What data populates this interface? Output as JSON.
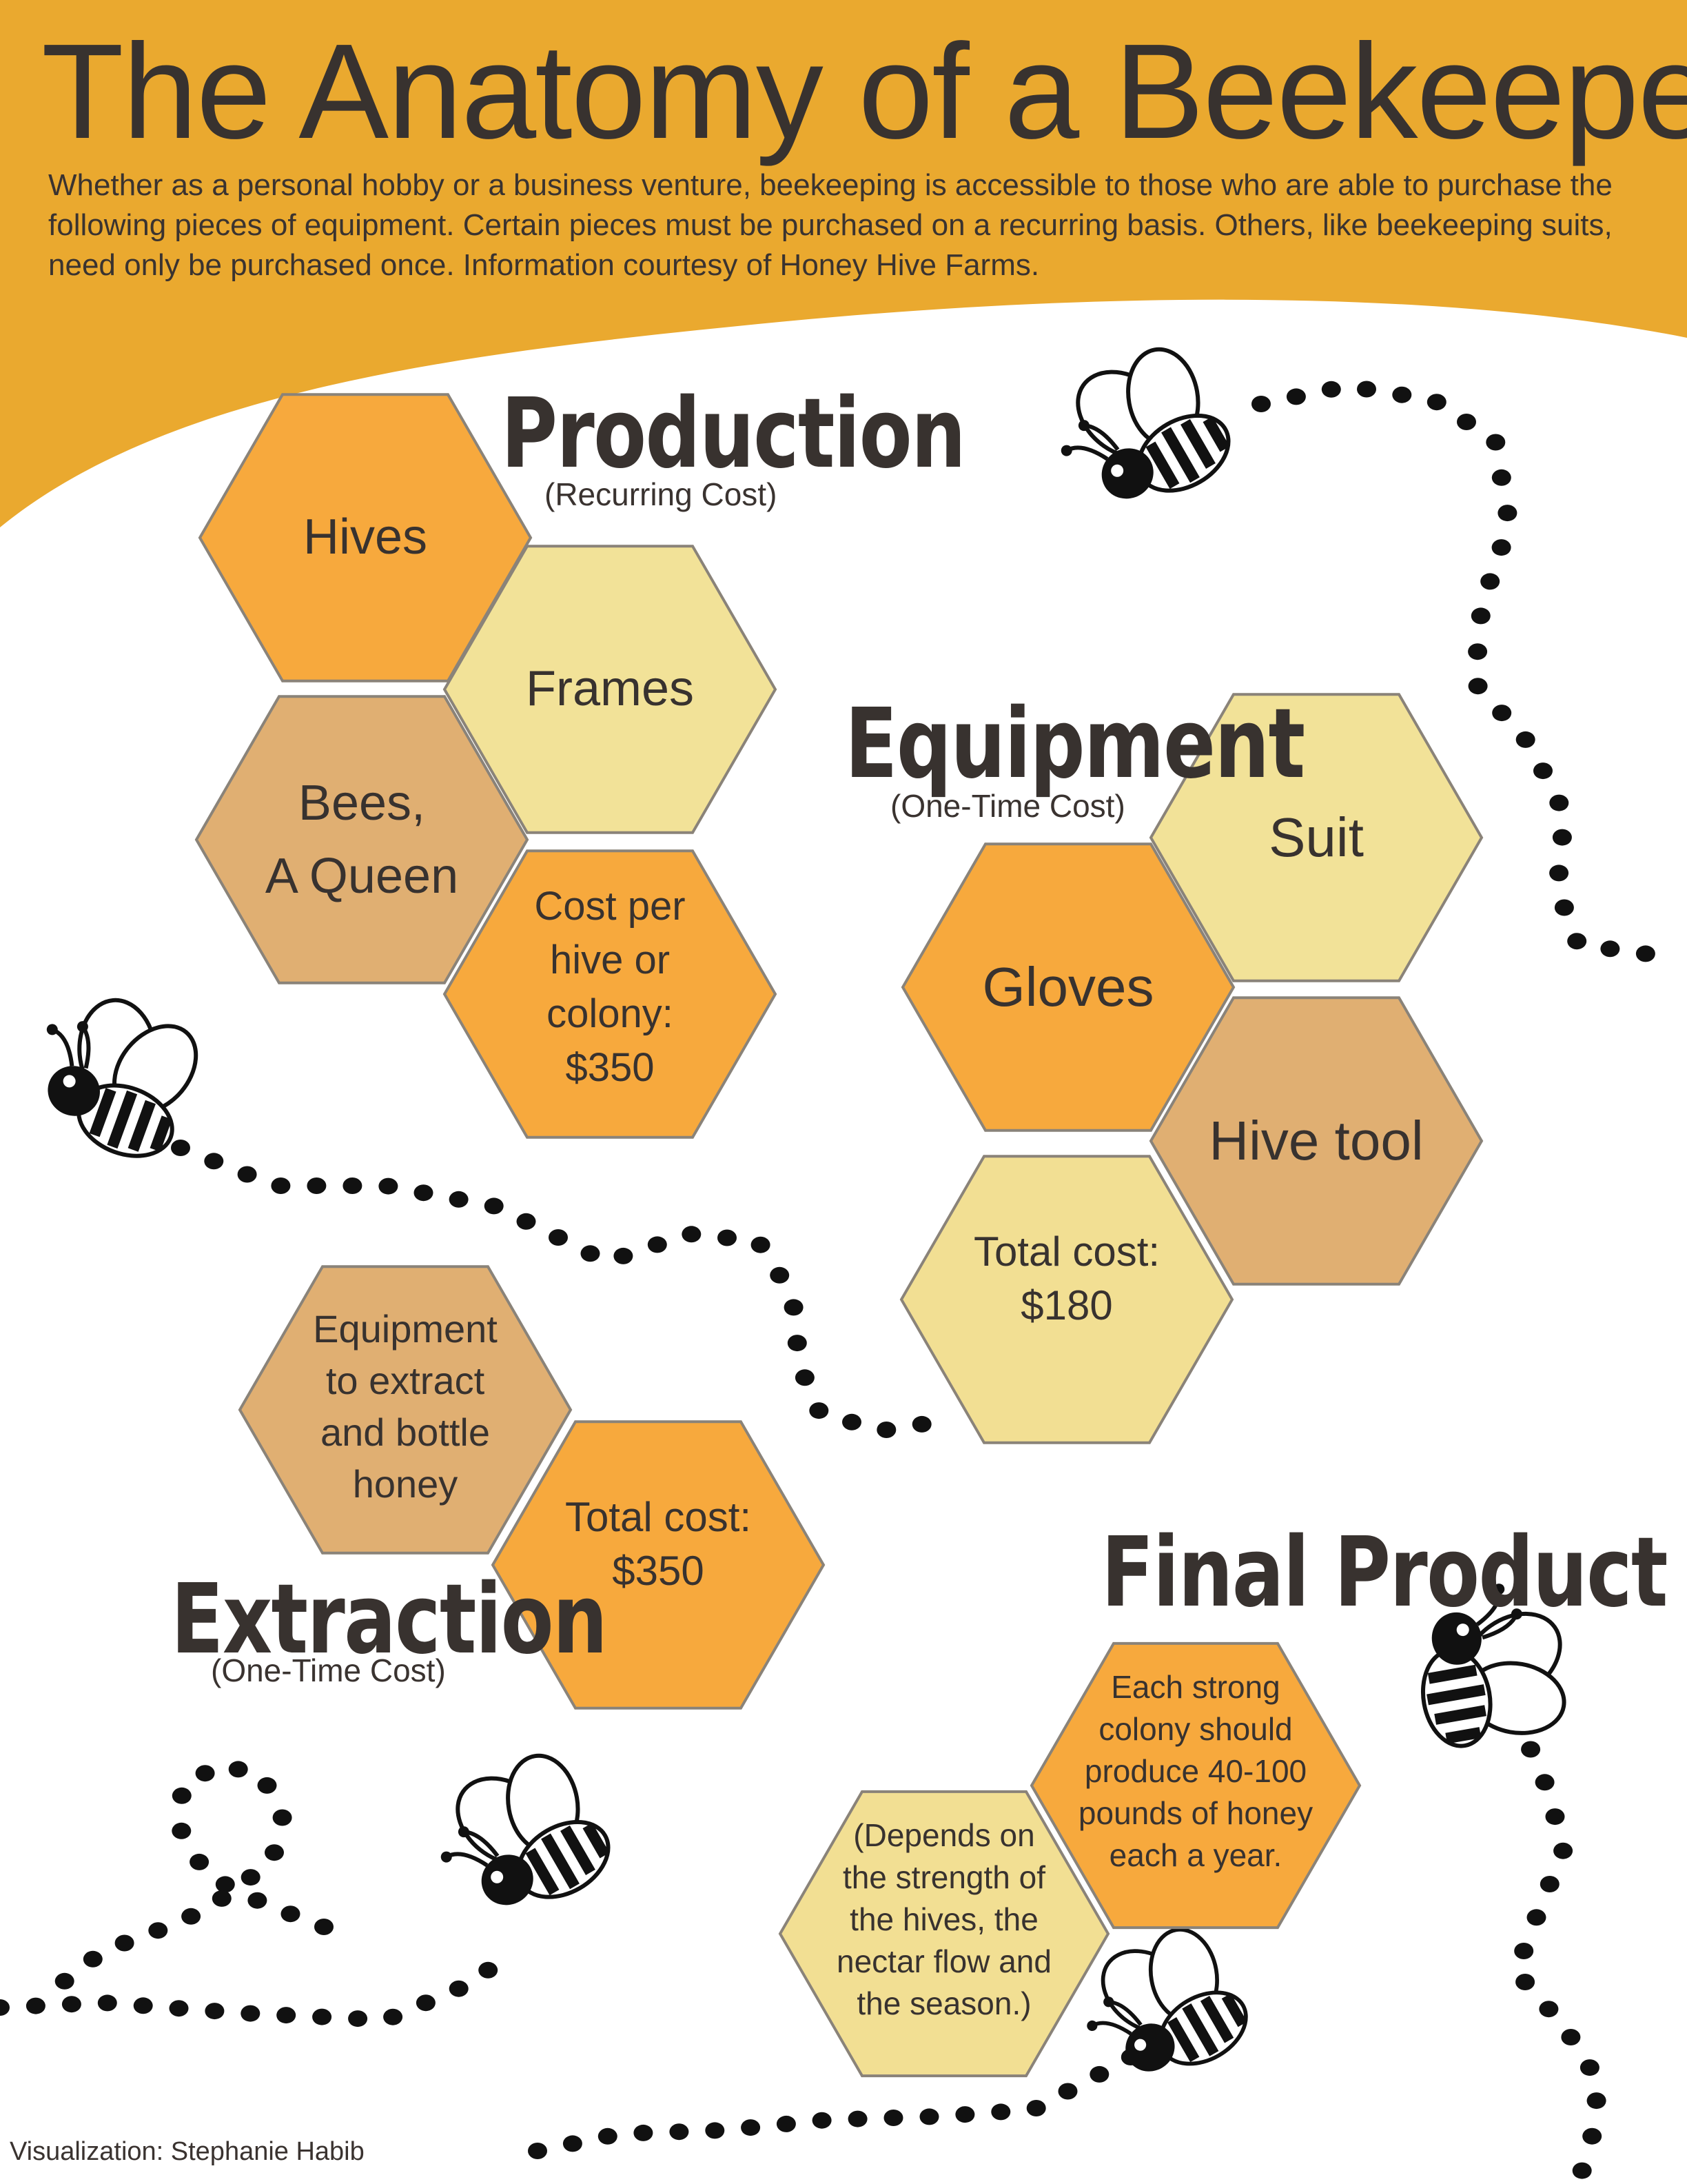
{
  "title": "The Anatomy of a Beekeeper",
  "intro": "Whether as a personal hobby or a business venture, beekeeping is accessible to those who are able to purchase the following pieces of equipment. Certain pieces must be purchased on a recurring basis. Others, like beekeeping suits, need only be purchased once. Information courtesy of Honey Hive Farms.",
  "colors": {
    "banner": "#eaa92f",
    "dark_orange": "#f7a93d",
    "light_yellow": "#f2e298",
    "tan": "#e0af72",
    "pale_yellow": "#f2df93",
    "dots": "#111111"
  },
  "sections": {
    "production": {
      "heading": "Production",
      "subheading": "(Recurring Cost)",
      "items": [
        "Hives",
        "Frames",
        "Bees,\nA Queen"
      ],
      "cost": "Cost per\nhive or\ncolony:\n$350"
    },
    "equipment": {
      "heading": "Equipment",
      "subheading": "(One-Time Cost)",
      "items": [
        "Suit",
        "Gloves",
        "Hive tool"
      ],
      "cost": "Total cost:\n$180"
    },
    "extraction": {
      "heading": "Extraction",
      "subheading": "(One-Time Cost)",
      "items": [
        "Equipment\nto extract\nand bottle\nhoney"
      ],
      "cost": "Total cost:\n$350"
    },
    "final_product": {
      "heading": "Final Product",
      "yield": "Each strong\ncolony should\nproduce 40-100\npounds of honey\neach a year.",
      "note": "(Depends on\nthe strength of\nthe hives, the\nnectar flow and\nthe season.)"
    }
  },
  "footer": "Visualization: Stephanie Habib",
  "decor": {
    "bee_icon": "bee-icon",
    "trail": "dotted-flight-trail"
  }
}
